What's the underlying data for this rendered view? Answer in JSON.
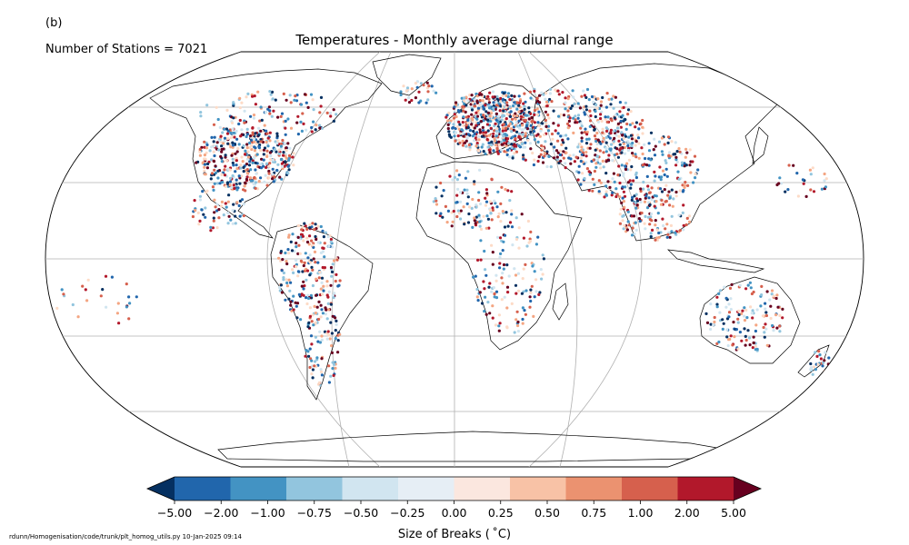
{
  "panel_label": "(b)",
  "station_count_text": "Number of Stations = 7021",
  "title": "Temperatures - Monthly average diurnal range",
  "colorbar": {
    "title": "Size of Breaks ($^\\circ$C)",
    "title_display": "Size of Breaks ( ˚C)",
    "ticks": [
      "−5.00",
      "−2.00",
      "−1.00",
      "−0.75",
      "−0.50",
      "−0.25",
      "0.00",
      "0.25",
      "0.50",
      "0.75",
      "1.00",
      "2.00",
      "5.00"
    ],
    "colors": [
      "#053061",
      "#2166ac",
      "#4393c3",
      "#92c5de",
      "#d1e5f0",
      "#f7f7f7",
      "#fddbc7",
      "#f4a582",
      "#d6604d",
      "#b2182b",
      "#67001f",
      "#67001f"
    ],
    "bin_colors": [
      "#2166ac",
      "#4393c3",
      "#92c5de",
      "#d1e5f0",
      "#e6eef5",
      "#fbe7df",
      "#f8c2a6",
      "#eb9270",
      "#d6604d",
      "#b2182b"
    ],
    "extend_low_color": "#053061",
    "extend_high_color": "#67001f",
    "bounds": [
      -5,
      -2,
      -1,
      -0.75,
      -0.5,
      -0.25,
      0,
      0.25,
      0.5,
      0.75,
      1,
      2,
      5
    ]
  },
  "map": {
    "projection": "Robinson",
    "gridlines": true,
    "coastlines": true
  },
  "footer": "rdunn/Homogenisation/code/trunk/plt_homog_utils.py   10-Jan-2025 09:14"
}
